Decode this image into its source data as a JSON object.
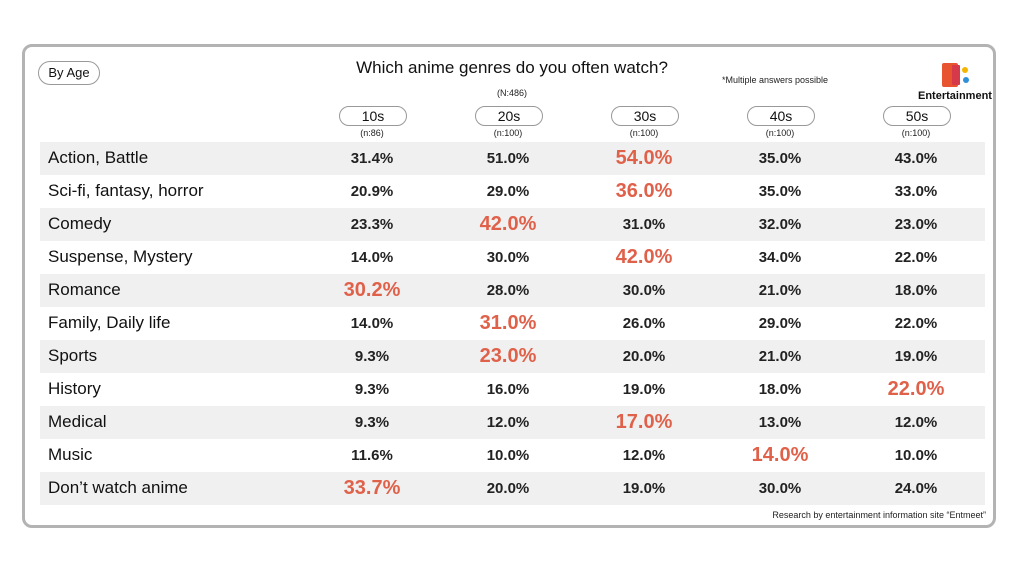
{
  "badge": "By Age",
  "title": "Which anime genres do you often watch?",
  "sample": "(N:486)",
  "note": "*Multiple answers possible",
  "brand": "Entertainment",
  "columns": [
    {
      "label": "10s",
      "n": "(n:86)"
    },
    {
      "label": "20s",
      "n": "(n:100)"
    },
    {
      "label": "30s",
      "n": "(n:100)"
    },
    {
      "label": "40s",
      "n": "(n:100)"
    },
    {
      "label": "50s",
      "n": "(n:100)"
    }
  ],
  "rows": [
    {
      "label": "Action, Battle",
      "cells": [
        "31.4%",
        "51.0%",
        "54.0%",
        "35.0%",
        "43.0%"
      ],
      "highlight": 2
    },
    {
      "label": "Sci-fi, fantasy, horror",
      "cells": [
        "20.9%",
        "29.0%",
        "36.0%",
        "35.0%",
        "33.0%"
      ],
      "highlight": 2
    },
    {
      "label": "Comedy",
      "cells": [
        "23.3%",
        "42.0%",
        "31.0%",
        "32.0%",
        "23.0%"
      ],
      "highlight": 1
    },
    {
      "label": "Suspense, Mystery",
      "cells": [
        "14.0%",
        "30.0%",
        "42.0%",
        "34.0%",
        "22.0%"
      ],
      "highlight": 2
    },
    {
      "label": "Romance",
      "cells": [
        "30.2%",
        "28.0%",
        "30.0%",
        "21.0%",
        "18.0%"
      ],
      "highlight": 0
    },
    {
      "label": "Family, Daily life",
      "cells": [
        "14.0%",
        "31.0%",
        "26.0%",
        "29.0%",
        "22.0%"
      ],
      "highlight": 1
    },
    {
      "label": "Sports",
      "cells": [
        "9.3%",
        "23.0%",
        "20.0%",
        "21.0%",
        "19.0%"
      ],
      "highlight": 1
    },
    {
      "label": "History",
      "cells": [
        "9.3%",
        "16.0%",
        "19.0%",
        "18.0%",
        "22.0%"
      ],
      "highlight": 4
    },
    {
      "label": "Medical",
      "cells": [
        "9.3%",
        "12.0%",
        "17.0%",
        "13.0%",
        "12.0%"
      ],
      "highlight": 2
    },
    {
      "label": "Music",
      "cells": [
        "11.6%",
        "10.0%",
        "12.0%",
        "14.0%",
        "10.0%"
      ],
      "highlight": 3
    },
    {
      "label": "Don’t watch anime",
      "cells": [
        "33.7%",
        "20.0%",
        "19.0%",
        "30.0%",
        "24.0%"
      ],
      "highlight": 0
    }
  ],
  "footer": "Research by entertainment information site “Entmeet”"
}
